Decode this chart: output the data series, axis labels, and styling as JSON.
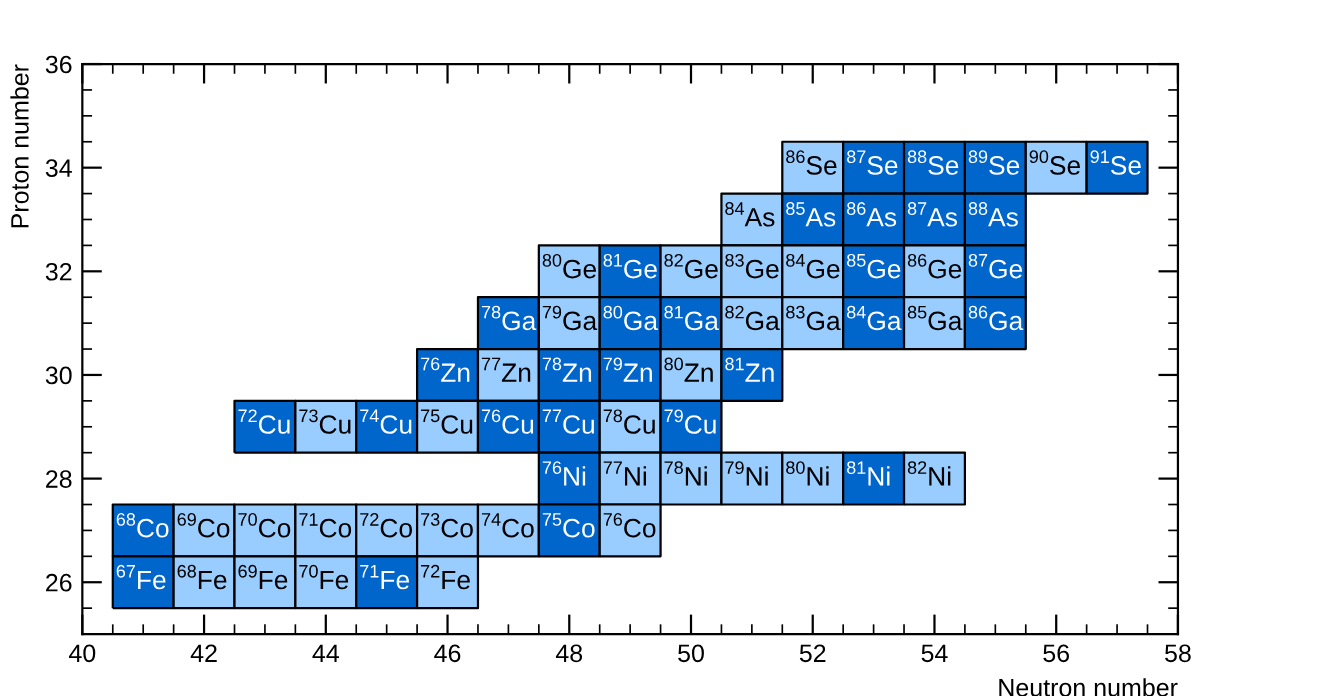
{
  "chart_data": {
    "type": "heatmap",
    "xlabel": "Neutron number",
    "ylabel": "Proton number",
    "x": [
      41,
      42,
      43,
      44,
      45,
      46,
      47,
      48,
      49,
      50,
      51,
      52,
      53,
      54,
      55,
      56,
      57
    ],
    "y": [
      34,
      33,
      32,
      31,
      30,
      29,
      28,
      27,
      26
    ],
    "y2_categories": [
      "Se",
      "As",
      "Ge",
      "Ga",
      "Zn",
      "Cu",
      "Ni",
      "Co",
      "Fe"
    ],
    "cells": [
      [
        null,
        null,
        null,
        null,
        null,
        null,
        null,
        null,
        null,
        null,
        null,
        86,
        87,
        88,
        89,
        90,
        91
      ],
      [
        null,
        null,
        null,
        null,
        null,
        null,
        null,
        null,
        null,
        null,
        84,
        85,
        86,
        87,
        88,
        null,
        null
      ],
      [
        null,
        null,
        null,
        null,
        null,
        null,
        null,
        80,
        81,
        82,
        83,
        84,
        85,
        86,
        87,
        null,
        null
      ],
      [
        null,
        null,
        null,
        null,
        null,
        null,
        78,
        79,
        80,
        81,
        82,
        83,
        84,
        85,
        86,
        null,
        null
      ],
      [
        null,
        null,
        null,
        null,
        null,
        76,
        77,
        78,
        79,
        80,
        81,
        null,
        null,
        null,
        null,
        null,
        null
      ],
      [
        null,
        null,
        72,
        73,
        74,
        75,
        76,
        77,
        78,
        79,
        null,
        null,
        null,
        null,
        null,
        null,
        null
      ],
      [
        null,
        null,
        null,
        null,
        null,
        null,
        null,
        76,
        77,
        78,
        79,
        80,
        81,
        82,
        null,
        null,
        null
      ],
      [
        68,
        69,
        70,
        71,
        72,
        73,
        74,
        75,
        76,
        null,
        null,
        null,
        null,
        null,
        null,
        null,
        null
      ],
      [
        67,
        68,
        69,
        70,
        71,
        72,
        null,
        null,
        null,
        null,
        null,
        null,
        null,
        null,
        null,
        null,
        null
      ]
    ],
    "colors": [
      [
        null,
        null,
        null,
        null,
        null,
        null,
        null,
        null,
        null,
        null,
        null,
        "#99ccff",
        "#0066cc",
        "#0066cc",
        "#0066cc",
        "#99ccff",
        "#0066cc"
      ],
      [
        null,
        null,
        null,
        null,
        null,
        null,
        null,
        null,
        null,
        null,
        "#99ccff",
        "#0066cc",
        "#0066cc",
        "#0066cc",
        "#0066cc",
        null,
        null
      ],
      [
        null,
        null,
        null,
        null,
        null,
        null,
        null,
        "#99ccff",
        "#0066cc",
        "#99ccff",
        "#99ccff",
        "#99ccff",
        "#0066cc",
        "#99ccff",
        "#0066cc",
        null,
        null
      ],
      [
        null,
        null,
        null,
        null,
        null,
        null,
        "#0066cc",
        "#99ccff",
        "#0066cc",
        "#0066cc",
        "#99ccff",
        "#99ccff",
        "#0066cc",
        "#99ccff",
        "#0066cc",
        null,
        null
      ],
      [
        null,
        null,
        null,
        null,
        null,
        "#0066cc",
        "#99ccff",
        "#0066cc",
        "#0066cc",
        "#99ccff",
        "#0066cc",
        null,
        null,
        null,
        null,
        null,
        null
      ],
      [
        null,
        null,
        "#0066cc",
        "#99ccff",
        "#0066cc",
        "#99ccff",
        "#0066cc",
        "#0066cc",
        "#99ccff",
        "#0066cc",
        null,
        null,
        null,
        null,
        null,
        null,
        null
      ],
      [
        null,
        null,
        null,
        null,
        null,
        null,
        null,
        "#0066cc",
        "#99ccff",
        "#99ccff",
        "#99ccff",
        "#99ccff",
        "#0066cc",
        "#99ccff",
        null,
        null,
        null
      ],
      [
        "#0066cc",
        "#99ccff",
        "#99ccff",
        "#99ccff",
        "#99ccff",
        "#99ccff",
        "#99ccff",
        "#0066cc",
        "#99ccff",
        null,
        null,
        null,
        null,
        null,
        null,
        null,
        null
      ],
      [
        "#0066cc",
        "#99ccff",
        "#99ccff",
        "#99ccff",
        "#0066cc",
        "#99ccff",
        null,
        null,
        null,
        null,
        null,
        null,
        null,
        null,
        null,
        null,
        null
      ]
    ],
    "xlim": [
      40,
      58
    ],
    "xticks": [
      40,
      42,
      44,
      46,
      48,
      50,
      52,
      54,
      56,
      58
    ],
    "ylim": [
      25,
      36
    ],
    "yticks": [
      26,
      28,
      30,
      32,
      34,
      36
    ],
    "grid": false,
    "data_labels": true
  }
}
